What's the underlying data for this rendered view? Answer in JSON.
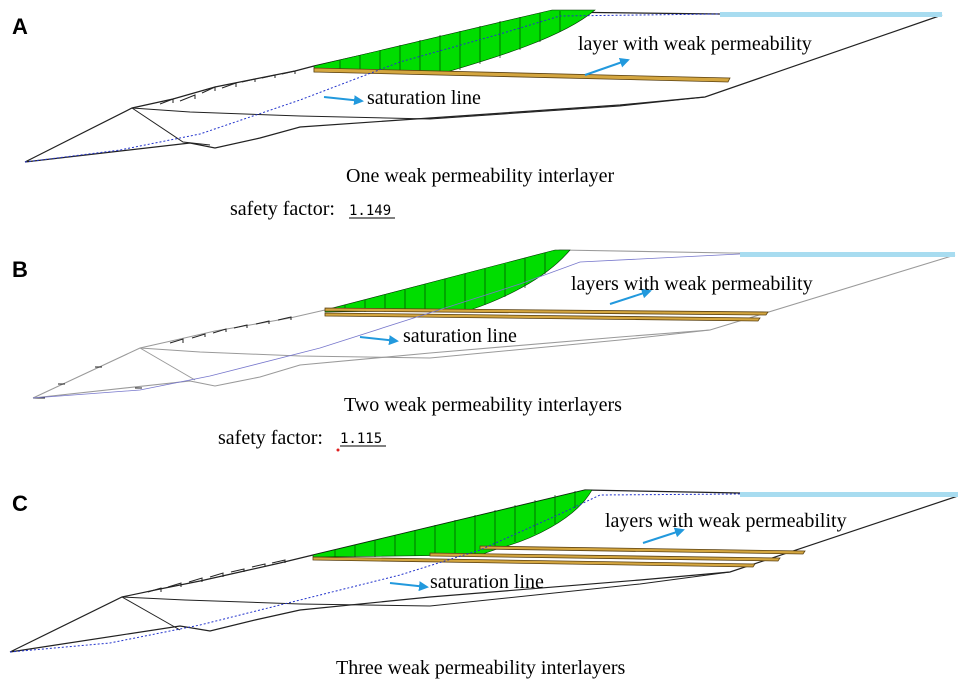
{
  "panels": [
    {
      "letter": "A",
      "layer_label": "layer with weak permeability",
      "saturation_label": "saturation line",
      "caption": "One weak permeability interlayer",
      "safety_label": "safety factor:",
      "safety_value": "1.149"
    },
    {
      "letter": "B",
      "layer_label": "layers with weak permeability",
      "saturation_label": "saturation line",
      "caption": "Two weak permeability interlayers",
      "safety_label": "safety factor:",
      "safety_value": "1.115"
    },
    {
      "letter": "C",
      "layer_label": "layers with weak permeability",
      "saturation_label": "saturation line",
      "caption": "Three weak permeability interlayers"
    }
  ],
  "colors": {
    "slide_mass": "#00dd00",
    "weak_layer": "#d4a640",
    "arrow": "#2299dd",
    "saturation_line": "#2233cc",
    "water": "#a8dcf0"
  },
  "icons": {
    "arrow": "arrow-icon"
  }
}
